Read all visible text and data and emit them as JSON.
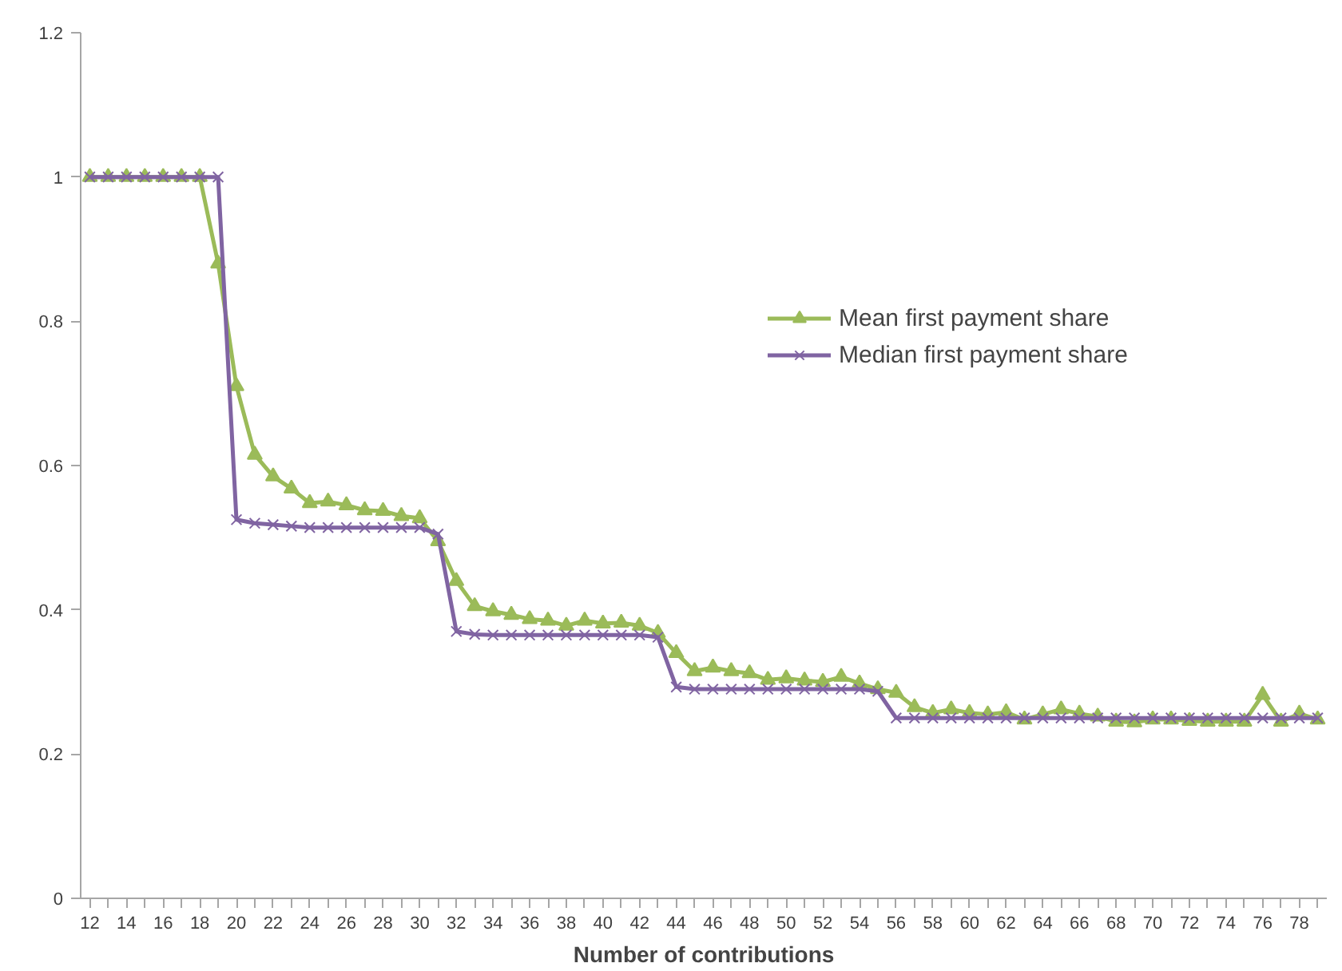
{
  "chart_data": {
    "type": "line",
    "xlabel": "Number of contributions",
    "categories": [
      "12",
      null,
      "14",
      null,
      "16",
      null,
      "18",
      null,
      "20",
      null,
      "22",
      null,
      "24",
      null,
      "26",
      null,
      "28",
      null,
      "30",
      null,
      "32",
      null,
      "34",
      null,
      "36",
      null,
      "38",
      null,
      "40",
      null,
      "42",
      null,
      "44",
      null,
      "46",
      null,
      "48",
      null,
      "50",
      null,
      "52",
      null,
      "54",
      null,
      "56",
      null,
      "58",
      null,
      "60",
      null,
      "62",
      null,
      "64",
      null,
      "66",
      null,
      "68",
      null,
      "70",
      null,
      "72",
      null,
      "74",
      null,
      "76",
      null,
      "78",
      null
    ],
    "series": [
      {
        "name": "Mean first payment share",
        "color": "#9bbb59",
        "marker": "triangle",
        "values": [
          1.0,
          1.0,
          1.0,
          1.0,
          1.0,
          1.0,
          1.0,
          0.88,
          0.71,
          0.615,
          0.585,
          0.568,
          0.548,
          0.55,
          0.545,
          0.538,
          0.537,
          0.53,
          0.527,
          0.495,
          0.44,
          0.405,
          0.398,
          0.393,
          0.387,
          0.385,
          0.378,
          0.385,
          0.381,
          0.382,
          0.378,
          0.368,
          0.34,
          0.315,
          0.32,
          0.315,
          0.312,
          0.303,
          0.305,
          0.302,
          0.3,
          0.307,
          0.298,
          0.29,
          0.285,
          0.265,
          0.257,
          0.262,
          0.257,
          0.255,
          0.258,
          0.248,
          0.255,
          0.262,
          0.256,
          0.252,
          0.245,
          0.244,
          0.248,
          0.248,
          0.246,
          0.245,
          0.245,
          0.245,
          0.282,
          0.245,
          0.256,
          0.248
        ]
      },
      {
        "name": "Median first payment share",
        "color": "#8064a2",
        "marker": "cross",
        "values": [
          1.0,
          1.0,
          1.0,
          1.0,
          1.0,
          1.0,
          1.0,
          1.0,
          0.525,
          0.52,
          0.518,
          0.516,
          0.514,
          0.514,
          0.514,
          0.514,
          0.514,
          0.514,
          0.514,
          0.505,
          0.37,
          0.366,
          0.365,
          0.365,
          0.365,
          0.365,
          0.365,
          0.365,
          0.365,
          0.365,
          0.365,
          0.362,
          0.293,
          0.29,
          0.29,
          0.29,
          0.29,
          0.29,
          0.29,
          0.29,
          0.29,
          0.29,
          0.29,
          0.287,
          0.25,
          0.25,
          0.25,
          0.25,
          0.25,
          0.25,
          0.25,
          0.25,
          0.25,
          0.25,
          0.25,
          0.25,
          0.25,
          0.25,
          0.25,
          0.25,
          0.25,
          0.25,
          0.25,
          0.25,
          0.25,
          0.25,
          0.25,
          0.25
        ]
      }
    ],
    "ylim": [
      0,
      1.2
    ],
    "yticks": [
      0,
      0.2,
      0.4,
      0.6,
      0.8,
      1,
      1.2
    ],
    "grid": false,
    "legend": "right"
  }
}
